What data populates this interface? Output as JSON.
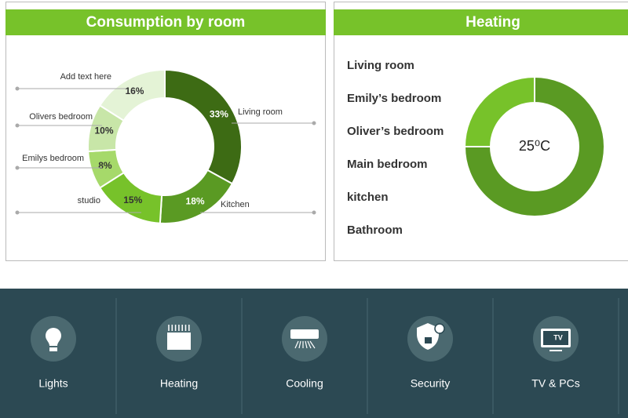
{
  "chart_data": [
    {
      "type": "donut",
      "title": "Consumption by room",
      "categories": [
        "Living room",
        "Kitchen",
        "studio",
        "Emilys bedroom",
        "Olivers bedroom",
        "Add text here"
      ],
      "values": [
        33,
        18,
        15,
        8,
        10,
        16
      ],
      "value_labels": [
        "33%",
        "18%",
        "15%",
        "8%",
        "10%",
        "16%"
      ],
      "colors": [
        "#3d6b14",
        "#5a9a23",
        "#77c22a",
        "#a6d96a",
        "#c8e6a8",
        "#e4f3d6"
      ]
    },
    {
      "type": "donut",
      "title": "Heating",
      "categories": [
        null,
        null
      ],
      "values": [
        75,
        25
      ],
      "colors": [
        "#5a9a23",
        "#77c22a"
      ],
      "center_label": "25⁰C"
    }
  ],
  "heating_list": [
    "Living room",
    "Emily’s bedroom",
    "Oliver’s bedroom",
    "Main bedroom",
    "kitchen",
    "Bathroom"
  ],
  "nav": [
    {
      "label": "Lights"
    },
    {
      "label": "Heating"
    },
    {
      "label": "Cooling"
    },
    {
      "label": "Security"
    },
    {
      "label": "TV & PCs",
      "icon_text": "TV"
    }
  ]
}
